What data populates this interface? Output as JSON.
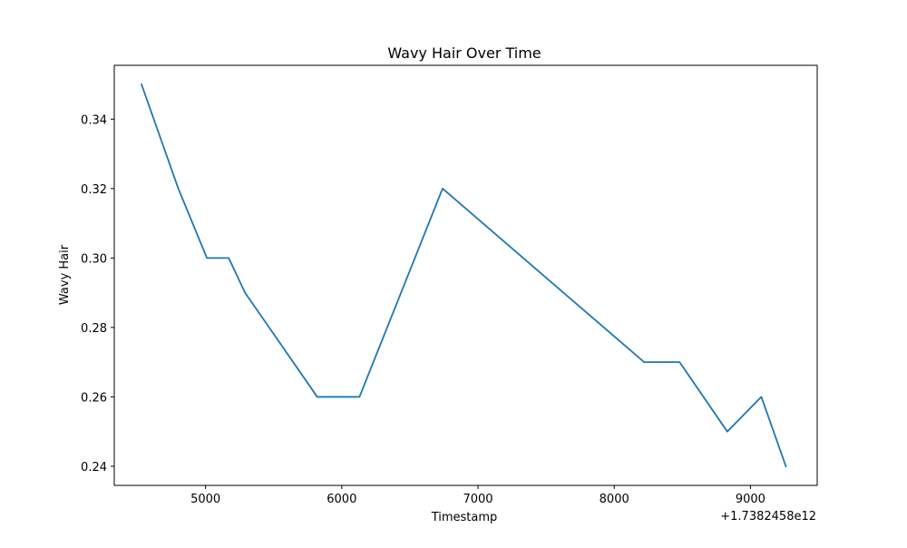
{
  "chart_data": {
    "type": "line",
    "title": "Wavy Hair Over Time",
    "xlabel": "Timestamp",
    "ylabel": "Wavy Hair",
    "x_offset_label": "+1.7382458e12",
    "x_tick_labels": [
      "5000",
      "6000",
      "7000",
      "8000",
      "9000"
    ],
    "y_tick_labels": [
      "0.24",
      "0.26",
      "0.28",
      "0.30",
      "0.32",
      "0.34"
    ],
    "xlim": [
      4330,
      9490
    ],
    "ylim": [
      0.2345,
      0.3555
    ],
    "grid": false,
    "series": [
      {
        "color": "#1f77b4",
        "x": [
          4530,
          4800,
          5010,
          5170,
          5290,
          5820,
          6130,
          6740,
          8220,
          8480,
          8830,
          9080,
          9260
        ],
        "y": [
          0.35,
          0.32,
          0.3,
          0.3,
          0.29,
          0.26,
          0.26,
          0.32,
          0.27,
          0.27,
          0.25,
          0.26,
          0.24
        ]
      }
    ]
  }
}
